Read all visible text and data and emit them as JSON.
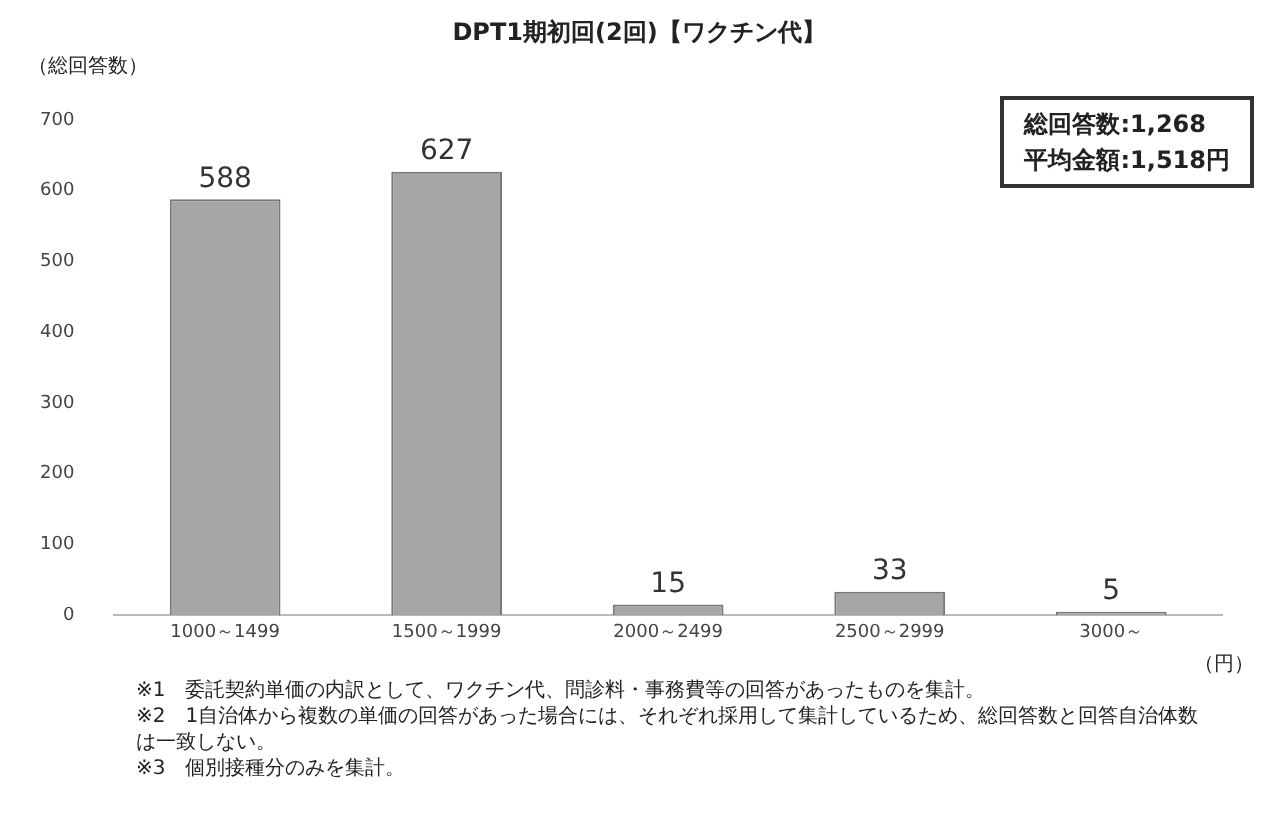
{
  "chart_data": {
    "type": "bar",
    "title": "DPT1期初回(2回)【ワクチン代】",
    "ylabel": "（総回答数）",
    "xlabel": "（円）",
    "categories": [
      "1000～1499",
      "1500～1999",
      "2000～2499",
      "2500～2999",
      "3000～"
    ],
    "values": [
      588,
      627,
      15,
      33,
      5
    ],
    "color": "#a6a6a6",
    "data_labels": true,
    "ylim": [
      0,
      700
    ],
    "yticks": [
      0,
      100,
      200,
      300,
      400,
      500,
      600,
      700
    ],
    "grid": false,
    "legend": false,
    "annotations": [
      "総回答数:1,268",
      "平均金額:1,518円",
      "※1　委託契約単価の内訳として、ワクチン代、問診料・事務費等の回答があったものを集計。",
      "※2　1自治体から複数の単価の回答があった場合には、それぞれ採用して集計しているため、総回答数と回答自治体数は一致しない。",
      "※3　個別接種分のみを集計。"
    ]
  }
}
